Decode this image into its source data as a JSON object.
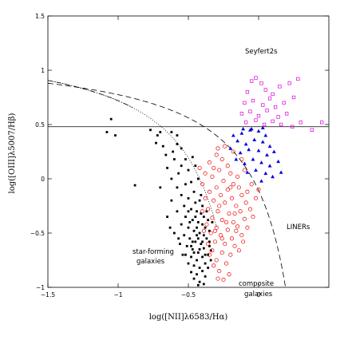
{
  "chart_data": {
    "type": "scatter",
    "title": "",
    "xlabel": "log([NII]λ6583/Hα)",
    "ylabel": "log([OIII]λ5007/Hβ)",
    "xlim": [
      -1.5,
      0.5
    ],
    "ylim": [
      -1.0,
      1.5
    ],
    "grid": false,
    "x_ticks": [
      {
        "value": -1.5,
        "label": "−1.5"
      },
      {
        "value": -1.0,
        "label": "−1"
      },
      {
        "value": -0.5,
        "label": "−0.5"
      },
      {
        "value": 0,
        "label": "0"
      }
    ],
    "y_ticks": [
      {
        "value": -1.0,
        "label": "−1"
      },
      {
        "value": -0.5,
        "label": "−0.5"
      },
      {
        "value": 0,
        "label": "0"
      },
      {
        "value": 0.5,
        "label": "0.5"
      },
      {
        "value": 1.0,
        "label": "1"
      },
      {
        "value": 1.5,
        "label": "1.5"
      }
    ],
    "region_labels": {
      "seyferts": "Seyfert2s",
      "liners": "LINERs",
      "starforming_1": "star-forming",
      "starforming_2": "galaxies",
      "composite_1": "composite",
      "composite_2": "galaxies"
    },
    "reference_lines": [
      {
        "kind": "horizontal",
        "y": 0.48,
        "style": "solid"
      },
      {
        "kind": "curve",
        "formula": "0.61/(x-0.47)+1.19",
        "x_range": [
          -1.5,
          0.3
        ],
        "style": "dashed"
      },
      {
        "kind": "curve",
        "formula": "0.61/(x-0.05)+1.3",
        "x_range": [
          -1.5,
          -0.3
        ],
        "style": "dotted"
      },
      {
        "kind": "curve",
        "formula": "0.61/(x-0.05)+1.3",
        "x_range": [
          -1.5,
          -0.9
        ],
        "style": "dashdot"
      }
    ],
    "series": [
      {
        "marker": "filled-square",
        "color": "#000000",
        "points": [
          [
            -1.05,
            0.55
          ],
          [
            -1.08,
            0.43
          ],
          [
            -1.02,
            0.4
          ],
          [
            -0.88,
            -0.06
          ],
          [
            -0.77,
            0.45
          ],
          [
            -0.73,
            0.33
          ],
          [
            -0.7,
            0.43
          ],
          [
            -0.72,
            0.4
          ],
          [
            -0.68,
            0.3
          ],
          [
            -0.62,
            0.43
          ],
          [
            -0.58,
            0.4
          ],
          [
            -0.58,
            0.32
          ],
          [
            -0.66,
            0.22
          ],
          [
            -0.61,
            0.25
          ],
          [
            -0.55,
            0.28
          ],
          [
            -0.6,
            0.18
          ],
          [
            -0.65,
            0.1
          ],
          [
            -0.55,
            0.12
          ],
          [
            -0.52,
            0.18
          ],
          [
            -0.62,
            0.0
          ],
          [
            -0.57,
            0.05
          ],
          [
            -0.5,
            0.08
          ],
          [
            -0.47,
            0.2
          ],
          [
            -0.45,
            0.12
          ],
          [
            -0.58,
            -0.08
          ],
          [
            -0.52,
            -0.05
          ],
          [
            -0.48,
            -0.03
          ],
          [
            -0.43,
            0.0
          ],
          [
            -0.55,
            -0.15
          ],
          [
            -0.5,
            -0.18
          ],
          [
            -0.46,
            -0.12
          ],
          [
            -0.42,
            -0.2
          ],
          [
            -0.53,
            -0.25
          ],
          [
            -0.48,
            -0.28
          ],
          [
            -0.44,
            -0.3
          ],
          [
            -0.4,
            -0.25
          ],
          [
            -0.58,
            -0.3
          ],
          [
            -0.52,
            -0.35
          ],
          [
            -0.47,
            -0.38
          ],
          [
            -0.43,
            -0.4
          ],
          [
            -0.39,
            -0.35
          ],
          [
            -0.55,
            -0.42
          ],
          [
            -0.5,
            -0.45
          ],
          [
            -0.46,
            -0.48
          ],
          [
            -0.42,
            -0.5
          ],
          [
            -0.38,
            -0.45
          ],
          [
            -0.6,
            -0.5
          ],
          [
            -0.53,
            -0.52
          ],
          [
            -0.49,
            -0.55
          ],
          [
            -0.45,
            -0.58
          ],
          [
            -0.41,
            -0.6
          ],
          [
            -0.37,
            -0.55
          ],
          [
            -0.56,
            -0.6
          ],
          [
            -0.51,
            -0.62
          ],
          [
            -0.47,
            -0.65
          ],
          [
            -0.43,
            -0.68
          ],
          [
            -0.39,
            -0.64
          ],
          [
            -0.35,
            -0.62
          ],
          [
            -0.52,
            -0.7
          ],
          [
            -0.48,
            -0.72
          ],
          [
            -0.44,
            -0.75
          ],
          [
            -0.4,
            -0.72
          ],
          [
            -0.36,
            -0.7
          ],
          [
            -0.5,
            -0.78
          ],
          [
            -0.46,
            -0.8
          ],
          [
            -0.42,
            -0.82
          ],
          [
            -0.38,
            -0.78
          ],
          [
            -0.48,
            -0.86
          ],
          [
            -0.44,
            -0.88
          ],
          [
            -0.4,
            -0.85
          ],
          [
            -0.36,
            -0.82
          ],
          [
            -0.46,
            -0.92
          ],
          [
            -0.42,
            -0.95
          ],
          [
            -0.38,
            -0.9
          ],
          [
            -0.43,
            -0.98
          ],
          [
            -0.39,
            -0.97
          ],
          [
            -0.62,
            -0.2
          ],
          [
            -0.65,
            -0.35
          ],
          [
            -0.7,
            -0.08
          ],
          [
            -0.63,
            -0.45
          ],
          [
            -0.57,
            -0.55
          ],
          [
            -0.54,
            -0.7
          ],
          [
            -0.35,
            -0.48
          ],
          [
            -0.34,
            -0.75
          ],
          [
            -0.45,
            -0.22
          ],
          [
            -0.41,
            -0.15
          ],
          [
            -0.37,
            -0.3
          ],
          [
            -0.33,
            -0.4
          ],
          [
            -0.49,
            -0.4
          ],
          [
            -0.44,
            -0.45
          ],
          [
            -0.4,
            -0.42
          ],
          [
            -0.36,
            -0.38
          ],
          [
            -0.47,
            -0.58
          ],
          [
            -0.43,
            -0.55
          ],
          [
            -0.39,
            -0.52
          ],
          [
            -0.35,
            -0.58
          ],
          [
            -0.46,
            -0.68
          ],
          [
            -0.42,
            -0.65
          ],
          [
            -0.38,
            -0.7
          ],
          [
            -0.34,
            -0.66
          ],
          [
            -0.45,
            -0.35
          ],
          [
            -0.41,
            -0.32
          ],
          [
            -0.5,
            -0.3
          ],
          [
            -0.48,
            -0.62
          ],
          [
            -0.44,
            -0.52
          ],
          [
            -0.4,
            -0.58
          ]
        ]
      },
      {
        "marker": "open-circle",
        "color": "#ee0000",
        "points": [
          [
            -0.3,
            0.22
          ],
          [
            -0.26,
            0.18
          ],
          [
            -0.22,
            0.12
          ],
          [
            -0.28,
            0.08
          ],
          [
            -0.2,
            0.05
          ],
          [
            -0.33,
            0.02
          ],
          [
            -0.25,
            -0.02
          ],
          [
            -0.18,
            -0.05
          ],
          [
            -0.3,
            -0.08
          ],
          [
            -0.22,
            -0.1
          ],
          [
            -0.14,
            -0.08
          ],
          [
            -0.35,
            -0.12
          ],
          [
            -0.27,
            -0.15
          ],
          [
            -0.19,
            -0.18
          ],
          [
            -0.12,
            -0.15
          ],
          [
            -0.32,
            -0.2
          ],
          [
            -0.24,
            -0.22
          ],
          [
            -0.16,
            -0.25
          ],
          [
            -0.09,
            -0.22
          ],
          [
            -0.36,
            -0.28
          ],
          [
            -0.29,
            -0.3
          ],
          [
            -0.21,
            -0.32
          ],
          [
            -0.13,
            -0.3
          ],
          [
            -0.33,
            -0.36
          ],
          [
            -0.26,
            -0.38
          ],
          [
            -0.18,
            -0.4
          ],
          [
            -0.1,
            -0.37
          ],
          [
            -0.37,
            -0.42
          ],
          [
            -0.3,
            -0.45
          ],
          [
            -0.22,
            -0.47
          ],
          [
            -0.15,
            -0.44
          ],
          [
            -0.34,
            -0.5
          ],
          [
            -0.27,
            -0.52
          ],
          [
            -0.19,
            -0.55
          ],
          [
            -0.12,
            -0.52
          ],
          [
            -0.31,
            -0.58
          ],
          [
            -0.24,
            -0.6
          ],
          [
            -0.17,
            -0.62
          ],
          [
            -0.33,
            -0.66
          ],
          [
            -0.26,
            -0.68
          ],
          [
            -0.2,
            -0.7
          ],
          [
            -0.3,
            -0.75
          ],
          [
            -0.23,
            -0.78
          ],
          [
            -0.28,
            -0.85
          ],
          [
            -0.21,
            -0.88
          ],
          [
            -0.25,
            -0.93
          ],
          [
            -0.15,
            0.02
          ],
          [
            -0.1,
            0.08
          ],
          [
            -0.05,
            -0.05
          ],
          [
            -0.08,
            -0.12
          ],
          [
            -0.02,
            -0.18
          ],
          [
            -0.06,
            -0.28
          ],
          [
            0.0,
            -0.1
          ],
          [
            -0.4,
            -0.05
          ],
          [
            -0.38,
            0.05
          ],
          [
            -0.42,
            0.1
          ],
          [
            -0.35,
            0.15
          ],
          [
            -0.29,
            0.28
          ],
          [
            -0.24,
            0.3
          ],
          [
            -0.18,
            0.25
          ],
          [
            -0.12,
            0.18
          ],
          [
            -0.38,
            -0.18
          ],
          [
            -0.4,
            -0.3
          ],
          [
            -0.39,
            -0.48
          ],
          [
            -0.36,
            -0.6
          ],
          [
            -0.35,
            -0.7
          ],
          [
            -0.32,
            -0.8
          ],
          [
            -0.29,
            -0.92
          ],
          [
            -0.16,
            -0.48
          ],
          [
            -0.11,
            -0.58
          ],
          [
            -0.14,
            -0.66
          ],
          [
            -0.08,
            -0.45
          ],
          [
            -0.04,
            -0.35
          ],
          [
            -0.28,
            -0.25
          ],
          [
            -0.23,
            -0.4
          ],
          [
            -0.31,
            -0.48
          ],
          [
            -0.17,
            -0.32
          ],
          [
            -0.26,
            -0.55
          ],
          [
            -0.2,
            -0.08
          ],
          [
            -0.32,
            0.1
          ]
        ]
      },
      {
        "marker": "filled-triangle",
        "color": "#0000dd",
        "points": [
          [
            -0.18,
            0.4
          ],
          [
            -0.12,
            0.42
          ],
          [
            -0.06,
            0.45
          ],
          [
            0.0,
            0.44
          ],
          [
            0.05,
            0.4
          ],
          [
            -0.15,
            0.35
          ],
          [
            -0.09,
            0.32
          ],
          [
            -0.03,
            0.36
          ],
          [
            0.03,
            0.34
          ],
          [
            0.08,
            0.3
          ],
          [
            -0.2,
            0.28
          ],
          [
            -0.13,
            0.24
          ],
          [
            -0.07,
            0.27
          ],
          [
            0.0,
            0.26
          ],
          [
            0.06,
            0.22
          ],
          [
            0.11,
            0.25
          ],
          [
            -0.16,
            0.18
          ],
          [
            -0.1,
            0.14
          ],
          [
            -0.04,
            0.18
          ],
          [
            0.02,
            0.15
          ],
          [
            0.08,
            0.12
          ],
          [
            0.14,
            0.16
          ],
          [
            -0.08,
            0.06
          ],
          [
            -0.02,
            0.08
          ],
          [
            0.05,
            0.05
          ],
          [
            0.1,
            0.02
          ],
          [
            0.16,
            0.06
          ],
          [
            0.02,
            -0.02
          ],
          [
            -0.05,
            0.46
          ],
          [
            0.03,
            0.47
          ],
          [
            -0.11,
            0.46
          ]
        ]
      },
      {
        "marker": "open-square",
        "color": "#dd00dd",
        "points": [
          [
            -0.05,
            0.9
          ],
          [
            -0.02,
            0.93
          ],
          [
            0.02,
            0.88
          ],
          [
            -0.08,
            0.8
          ],
          [
            0.05,
            0.82
          ],
          [
            0.1,
            0.78
          ],
          [
            0.15,
            0.85
          ],
          [
            0.22,
            0.88
          ],
          [
            0.28,
            0.92
          ],
          [
            -0.1,
            0.7
          ],
          [
            -0.04,
            0.72
          ],
          [
            0.03,
            0.68
          ],
          [
            0.08,
            0.74
          ],
          [
            0.12,
            0.66
          ],
          [
            0.18,
            0.7
          ],
          [
            0.25,
            0.75
          ],
          [
            -0.12,
            0.6
          ],
          [
            -0.06,
            0.62
          ],
          [
            0.0,
            0.58
          ],
          [
            0.06,
            0.63
          ],
          [
            0.14,
            0.57
          ],
          [
            0.2,
            0.6
          ],
          [
            -0.09,
            0.52
          ],
          [
            -0.02,
            0.54
          ],
          [
            0.04,
            0.5
          ],
          [
            0.1,
            0.53
          ],
          [
            0.3,
            0.52
          ],
          [
            0.38,
            0.45
          ],
          [
            0.45,
            0.52
          ],
          [
            0.24,
            0.48
          ],
          [
            0.16,
            0.5
          ]
        ]
      }
    ]
  }
}
